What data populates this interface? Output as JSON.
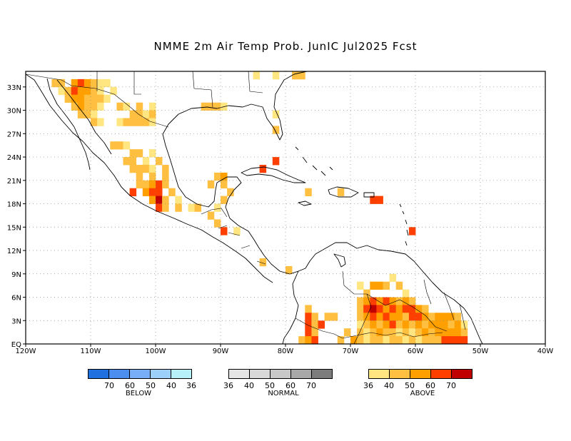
{
  "title": "NMME 2m Air Temp Prob. JunIC  Jul2025 Fcst",
  "map": {
    "extent": {
      "lon_min": -120,
      "lon_max": -40,
      "lat_min": 0,
      "lat_max": 35
    },
    "lon_labels": [
      "120W",
      "110W",
      "100W",
      "90W",
      "80W",
      "70W",
      "60W",
      "50W",
      "40W"
    ],
    "lat_labels": [
      "EQ",
      "3N",
      "6N",
      "9N",
      "12N",
      "15N",
      "18N",
      "21N",
      "24N",
      "27N",
      "30N",
      "33N"
    ],
    "colors": {
      "a36": "#ffe680",
      "a40": "#ffc042",
      "a50": "#ffa000",
      "a60": "#ff3f00",
      "a70": "#c00000"
    },
    "cells": [
      {
        "lon": -116,
        "lat": 33,
        "c": "a40"
      },
      {
        "lon": -115,
        "lat": 33,
        "c": "a40"
      },
      {
        "lon": -113,
        "lat": 33,
        "c": "a50"
      },
      {
        "lon": -112,
        "lat": 33,
        "c": "a60"
      },
      {
        "lon": -111,
        "lat": 33,
        "c": "a50"
      },
      {
        "lon": -110,
        "lat": 33,
        "c": "a40"
      },
      {
        "lon": -109,
        "lat": 33,
        "c": "a36"
      },
      {
        "lon": -108,
        "lat": 33,
        "c": "a36"
      },
      {
        "lon": -115,
        "lat": 32,
        "c": "a36"
      },
      {
        "lon": -114,
        "lat": 32,
        "c": "a40"
      },
      {
        "lon": -113,
        "lat": 32,
        "c": "a60"
      },
      {
        "lon": -112,
        "lat": 32,
        "c": "a50"
      },
      {
        "lon": -111,
        "lat": 32,
        "c": "a50"
      },
      {
        "lon": -110,
        "lat": 32,
        "c": "a40"
      },
      {
        "lon": -109,
        "lat": 32,
        "c": "a36"
      },
      {
        "lon": -107,
        "lat": 32,
        "c": "a36"
      },
      {
        "lon": -114,
        "lat": 31,
        "c": "a40"
      },
      {
        "lon": -113,
        "lat": 31,
        "c": "a50"
      },
      {
        "lon": -112,
        "lat": 31,
        "c": "a50"
      },
      {
        "lon": -111,
        "lat": 31,
        "c": "a40"
      },
      {
        "lon": -110,
        "lat": 31,
        "c": "a40"
      },
      {
        "lon": -109,
        "lat": 31,
        "c": "a40"
      },
      {
        "lon": -108,
        "lat": 31,
        "c": "a36"
      },
      {
        "lon": -113,
        "lat": 30,
        "c": "a40"
      },
      {
        "lon": -112,
        "lat": 30,
        "c": "a50"
      },
      {
        "lon": -111,
        "lat": 30,
        "c": "a40"
      },
      {
        "lon": -110,
        "lat": 30,
        "c": "a40"
      },
      {
        "lon": -109,
        "lat": 30,
        "c": "a36"
      },
      {
        "lon": -106,
        "lat": 30,
        "c": "a40"
      },
      {
        "lon": -105,
        "lat": 30,
        "c": "a36"
      },
      {
        "lon": -103,
        "lat": 30,
        "c": "a40"
      },
      {
        "lon": -101,
        "lat": 30,
        "c": "a36"
      },
      {
        "lon": -112,
        "lat": 29,
        "c": "a40"
      },
      {
        "lon": -111,
        "lat": 29,
        "c": "a40"
      },
      {
        "lon": -110,
        "lat": 29,
        "c": "a36"
      },
      {
        "lon": -104,
        "lat": 29,
        "c": "a40"
      },
      {
        "lon": -103,
        "lat": 29,
        "c": "a40"
      },
      {
        "lon": -102,
        "lat": 29,
        "c": "a36"
      },
      {
        "lon": -101,
        "lat": 29,
        "c": "a40"
      },
      {
        "lon": -110,
        "lat": 28,
        "c": "a40"
      },
      {
        "lon": -109,
        "lat": 28,
        "c": "a36"
      },
      {
        "lon": -106,
        "lat": 28,
        "c": "a36"
      },
      {
        "lon": -105,
        "lat": 28,
        "c": "a40"
      },
      {
        "lon": -104,
        "lat": 28,
        "c": "a40"
      },
      {
        "lon": -103,
        "lat": 28,
        "c": "a40"
      },
      {
        "lon": -102,
        "lat": 28,
        "c": "a40"
      },
      {
        "lon": -101,
        "lat": 28,
        "c": "a36"
      },
      {
        "lon": -107,
        "lat": 25,
        "c": "a40"
      },
      {
        "lon": -106,
        "lat": 25,
        "c": "a40"
      },
      {
        "lon": -105,
        "lat": 25,
        "c": "a36"
      },
      {
        "lon": -104,
        "lat": 24,
        "c": "a40"
      },
      {
        "lon": -103,
        "lat": 24,
        "c": "a40"
      },
      {
        "lon": -101,
        "lat": 24,
        "c": "a36"
      },
      {
        "lon": -105,
        "lat": 23,
        "c": "a40"
      },
      {
        "lon": -104,
        "lat": 23,
        "c": "a40"
      },
      {
        "lon": -102,
        "lat": 23,
        "c": "a36"
      },
      {
        "lon": -100,
        "lat": 23,
        "c": "a40"
      },
      {
        "lon": -104,
        "lat": 22,
        "c": "a40"
      },
      {
        "lon": -103,
        "lat": 22,
        "c": "a40"
      },
      {
        "lon": -102,
        "lat": 22,
        "c": "a40"
      },
      {
        "lon": -101,
        "lat": 22,
        "c": "a36"
      },
      {
        "lon": -99,
        "lat": 22,
        "c": "a40"
      },
      {
        "lon": -103,
        "lat": 21,
        "c": "a40"
      },
      {
        "lon": -101,
        "lat": 21,
        "c": "a40"
      },
      {
        "lon": -99,
        "lat": 21,
        "c": "a40"
      },
      {
        "lon": -103,
        "lat": 20,
        "c": "a40"
      },
      {
        "lon": -102,
        "lat": 20,
        "c": "a40"
      },
      {
        "lon": -101,
        "lat": 20,
        "c": "a50"
      },
      {
        "lon": -100,
        "lat": 20,
        "c": "a60"
      },
      {
        "lon": -99,
        "lat": 20,
        "c": "a40"
      },
      {
        "lon": -104,
        "lat": 19,
        "c": "a60"
      },
      {
        "lon": -102,
        "lat": 19,
        "c": "a50"
      },
      {
        "lon": -101,
        "lat": 19,
        "c": "a60"
      },
      {
        "lon": -100,
        "lat": 19,
        "c": "a60"
      },
      {
        "lon": -98,
        "lat": 19,
        "c": "a40"
      },
      {
        "lon": -101,
        "lat": 18,
        "c": "a50"
      },
      {
        "lon": -100,
        "lat": 18,
        "c": "a70"
      },
      {
        "lon": -99,
        "lat": 18,
        "c": "a40"
      },
      {
        "lon": -97,
        "lat": 18,
        "c": "a36"
      },
      {
        "lon": -100,
        "lat": 17,
        "c": "a60"
      },
      {
        "lon": -99,
        "lat": 17,
        "c": "a40"
      },
      {
        "lon": -97,
        "lat": 17,
        "c": "a40"
      },
      {
        "lon": -95,
        "lat": 17,
        "c": "a36"
      },
      {
        "lon": -94,
        "lat": 17,
        "c": "a40"
      },
      {
        "lon": -92,
        "lat": 20,
        "c": "a40"
      },
      {
        "lon": -91,
        "lat": 21,
        "c": "a40"
      },
      {
        "lon": -90,
        "lat": 21,
        "c": "a50"
      },
      {
        "lon": -90,
        "lat": 20,
        "c": "a40"
      },
      {
        "lon": -89,
        "lat": 19,
        "c": "a40"
      },
      {
        "lon": -90,
        "lat": 18,
        "c": "a40"
      },
      {
        "lon": -91,
        "lat": 17,
        "c": "a36"
      },
      {
        "lon": -92,
        "lat": 16,
        "c": "a40"
      },
      {
        "lon": -91,
        "lat": 15,
        "c": "a40"
      },
      {
        "lon": -90,
        "lat": 14,
        "c": "a60"
      },
      {
        "lon": -88,
        "lat": 14,
        "c": "a36"
      },
      {
        "lon": -84,
        "lat": 10,
        "c": "a40"
      },
      {
        "lon": -93,
        "lat": 30,
        "c": "a40"
      },
      {
        "lon": -92,
        "lat": 30,
        "c": "a40"
      },
      {
        "lon": -91,
        "lat": 30,
        "c": "a40"
      },
      {
        "lon": -90,
        "lat": 30,
        "c": "a36"
      },
      {
        "lon": -82,
        "lat": 29,
        "c": "a36"
      },
      {
        "lon": -82,
        "lat": 27,
        "c": "a40"
      },
      {
        "lon": -85,
        "lat": 34,
        "c": "a36"
      },
      {
        "lon": -82,
        "lat": 34,
        "c": "a36"
      },
      {
        "lon": -79,
        "lat": 34,
        "c": "a40"
      },
      {
        "lon": -78,
        "lat": 34,
        "c": "a40"
      },
      {
        "lon": -82,
        "lat": 23,
        "c": "a60"
      },
      {
        "lon": -84,
        "lat": 22,
        "c": "a60"
      },
      {
        "lon": -77,
        "lat": 19,
        "c": "a40"
      },
      {
        "lon": -72,
        "lat": 19,
        "c": "a40"
      },
      {
        "lon": -67,
        "lat": 18,
        "c": "a60"
      },
      {
        "lon": -66,
        "lat": 18,
        "c": "a60"
      },
      {
        "lon": -61,
        "lat": 14,
        "c": "a60"
      },
      {
        "lon": -80,
        "lat": 9,
        "c": "a40"
      },
      {
        "lon": -77,
        "lat": 4,
        "c": "a40"
      },
      {
        "lon": -77,
        "lat": 3,
        "c": "a60"
      },
      {
        "lon": -76,
        "lat": 3,
        "c": "a40"
      },
      {
        "lon": -77,
        "lat": 2,
        "c": "a60"
      },
      {
        "lon": -76,
        "lat": 2,
        "c": "a40"
      },
      {
        "lon": -75,
        "lat": 2,
        "c": "a60"
      },
      {
        "lon": -77,
        "lat": 1,
        "c": "a60"
      },
      {
        "lon": -76,
        "lat": 1,
        "c": "a40"
      },
      {
        "lon": -78,
        "lat": 0,
        "c": "a40"
      },
      {
        "lon": -77,
        "lat": 0,
        "c": "a50"
      },
      {
        "lon": -76,
        "lat": 0,
        "c": "a60"
      },
      {
        "lon": -74,
        "lat": 3,
        "c": "a40"
      },
      {
        "lon": -73,
        "lat": 3,
        "c": "a40"
      },
      {
        "lon": -72,
        "lat": 0,
        "c": "a40"
      },
      {
        "lon": -71,
        "lat": 1,
        "c": "a40"
      },
      {
        "lon": -70,
        "lat": 0,
        "c": "a50"
      },
      {
        "lon": -69,
        "lat": 7,
        "c": "a36"
      },
      {
        "lon": -68,
        "lat": 6,
        "c": "a40"
      },
      {
        "lon": -67,
        "lat": 7,
        "c": "a50"
      },
      {
        "lon": -66,
        "lat": 7,
        "c": "a50"
      },
      {
        "lon": -65,
        "lat": 7,
        "c": "a40"
      },
      {
        "lon": -64,
        "lat": 8,
        "c": "a36"
      },
      {
        "lon": -63,
        "lat": 7,
        "c": "a40"
      },
      {
        "lon": -62,
        "lat": 6,
        "c": "a36"
      },
      {
        "lon": -69,
        "lat": 5,
        "c": "a40"
      },
      {
        "lon": -68,
        "lat": 5,
        "c": "a50"
      },
      {
        "lon": -67,
        "lat": 5,
        "c": "a60"
      },
      {
        "lon": -66,
        "lat": 5,
        "c": "a50"
      },
      {
        "lon": -65,
        "lat": 5,
        "c": "a60"
      },
      {
        "lon": -64,
        "lat": 5,
        "c": "a50"
      },
      {
        "lon": -63,
        "lat": 5,
        "c": "a40"
      },
      {
        "lon": -62,
        "lat": 5,
        "c": "a50"
      },
      {
        "lon": -61,
        "lat": 5,
        "c": "a40"
      },
      {
        "lon": -69,
        "lat": 4,
        "c": "a40"
      },
      {
        "lon": -68,
        "lat": 4,
        "c": "a60"
      },
      {
        "lon": -67,
        "lat": 4,
        "c": "a70"
      },
      {
        "lon": -66,
        "lat": 4,
        "c": "a60"
      },
      {
        "lon": -65,
        "lat": 4,
        "c": "a50"
      },
      {
        "lon": -64,
        "lat": 4,
        "c": "a60"
      },
      {
        "lon": -63,
        "lat": 4,
        "c": "a50"
      },
      {
        "lon": -62,
        "lat": 4,
        "c": "a60"
      },
      {
        "lon": -61,
        "lat": 4,
        "c": "a60"
      },
      {
        "lon": -60,
        "lat": 4,
        "c": "a50"
      },
      {
        "lon": -59,
        "lat": 4,
        "c": "a40"
      },
      {
        "lon": -69,
        "lat": 3,
        "c": "a40"
      },
      {
        "lon": -68,
        "lat": 3,
        "c": "a50"
      },
      {
        "lon": -67,
        "lat": 3,
        "c": "a60"
      },
      {
        "lon": -66,
        "lat": 3,
        "c": "a50"
      },
      {
        "lon": -65,
        "lat": 3,
        "c": "a60"
      },
      {
        "lon": -64,
        "lat": 3,
        "c": "a50"
      },
      {
        "lon": -63,
        "lat": 3,
        "c": "a50"
      },
      {
        "lon": -62,
        "lat": 3,
        "c": "a40"
      },
      {
        "lon": -61,
        "lat": 3,
        "c": "a60"
      },
      {
        "lon": -60,
        "lat": 3,
        "c": "a60"
      },
      {
        "lon": -59,
        "lat": 3,
        "c": "a50"
      },
      {
        "lon": -58,
        "lat": 3,
        "c": "a40"
      },
      {
        "lon": -57,
        "lat": 3,
        "c": "a50"
      },
      {
        "lon": -56,
        "lat": 3,
        "c": "a50"
      },
      {
        "lon": -55,
        "lat": 3,
        "c": "a50"
      },
      {
        "lon": -54,
        "lat": 3,
        "c": "a40"
      },
      {
        "lon": -69,
        "lat": 2,
        "c": "a36"
      },
      {
        "lon": -68,
        "lat": 2,
        "c": "a40"
      },
      {
        "lon": -67,
        "lat": 2,
        "c": "a50"
      },
      {
        "lon": -66,
        "lat": 2,
        "c": "a40"
      },
      {
        "lon": -65,
        "lat": 2,
        "c": "a50"
      },
      {
        "lon": -64,
        "lat": 2,
        "c": "a60"
      },
      {
        "lon": -63,
        "lat": 2,
        "c": "a40"
      },
      {
        "lon": -62,
        "lat": 2,
        "c": "a50"
      },
      {
        "lon": -61,
        "lat": 2,
        "c": "a40"
      },
      {
        "lon": -60,
        "lat": 2,
        "c": "a50"
      },
      {
        "lon": -59,
        "lat": 2,
        "c": "a40"
      },
      {
        "lon": -58,
        "lat": 2,
        "c": "a50"
      },
      {
        "lon": -57,
        "lat": 2,
        "c": "a50"
      },
      {
        "lon": -56,
        "lat": 2,
        "c": "a50"
      },
      {
        "lon": -55,
        "lat": 2,
        "c": "a40"
      },
      {
        "lon": -54,
        "lat": 2,
        "c": "a50"
      },
      {
        "lon": -53,
        "lat": 2,
        "c": "a36"
      },
      {
        "lon": -69,
        "lat": 1,
        "c": "a40"
      },
      {
        "lon": -68,
        "lat": 1,
        "c": "a36"
      },
      {
        "lon": -67,
        "lat": 1,
        "c": "a40"
      },
      {
        "lon": -66,
        "lat": 1,
        "c": "a50"
      },
      {
        "lon": -65,
        "lat": 1,
        "c": "a40"
      },
      {
        "lon": -64,
        "lat": 1,
        "c": "a40"
      },
      {
        "lon": -63,
        "lat": 1,
        "c": "a36"
      },
      {
        "lon": -62,
        "lat": 1,
        "c": "a40"
      },
      {
        "lon": -61,
        "lat": 1,
        "c": "a36"
      },
      {
        "lon": -60,
        "lat": 1,
        "c": "a40"
      },
      {
        "lon": -59,
        "lat": 1,
        "c": "a50"
      },
      {
        "lon": -58,
        "lat": 1,
        "c": "a40"
      },
      {
        "lon": -57,
        "lat": 1,
        "c": "a50"
      },
      {
        "lon": -56,
        "lat": 1,
        "c": "a50"
      },
      {
        "lon": -55,
        "lat": 1,
        "c": "a50"
      },
      {
        "lon": -54,
        "lat": 1,
        "c": "a50"
      },
      {
        "lon": -53,
        "lat": 1,
        "c": "a40"
      },
      {
        "lon": -69,
        "lat": 0,
        "c": "a40"
      },
      {
        "lon": -68,
        "lat": 0,
        "c": "a36"
      },
      {
        "lon": -67,
        "lat": 0,
        "c": "a40"
      },
      {
        "lon": -66,
        "lat": 0,
        "c": "a40"
      },
      {
        "lon": -65,
        "lat": 0,
        "c": "a36"
      },
      {
        "lon": -64,
        "lat": 0,
        "c": "a40"
      },
      {
        "lon": -63,
        "lat": 0,
        "c": "a40"
      },
      {
        "lon": -62,
        "lat": 0,
        "c": "a36"
      },
      {
        "lon": -61,
        "lat": 0,
        "c": "a40"
      },
      {
        "lon": -60,
        "lat": 0,
        "c": "a36"
      },
      {
        "lon": -59,
        "lat": 0,
        "c": "a40"
      },
      {
        "lon": -58,
        "lat": 0,
        "c": "a40"
      },
      {
        "lon": -57,
        "lat": 0,
        "c": "a40"
      },
      {
        "lon": -56,
        "lat": 0,
        "c": "a60"
      },
      {
        "lon": -55,
        "lat": 0,
        "c": "a60"
      },
      {
        "lon": -54,
        "lat": 0,
        "c": "a60"
      },
      {
        "lon": -53,
        "lat": 0,
        "c": "a60"
      }
    ]
  },
  "legend": {
    "below": {
      "caption": "BELOW",
      "ticks": [
        "70",
        "60",
        "50",
        "40",
        "36"
      ],
      "colors": [
        "#2070e0",
        "#4b8ef0",
        "#78aef8",
        "#9cd0fa",
        "#b8f0fa"
      ]
    },
    "normal": {
      "caption": "NORMAL",
      "ticks": [
        "36",
        "40",
        "50",
        "60",
        "70"
      ],
      "colors": [
        "#e6e6e6",
        "#d8d8d8",
        "#c8c8c8",
        "#a8a8a8",
        "#7c7c7c"
      ]
    },
    "above": {
      "caption": "ABOVE",
      "ticks": [
        "36",
        "40",
        "50",
        "60",
        "70"
      ],
      "colors": [
        "#ffe680",
        "#ffc042",
        "#ffa000",
        "#ff3f00",
        "#c00000"
      ]
    }
  }
}
